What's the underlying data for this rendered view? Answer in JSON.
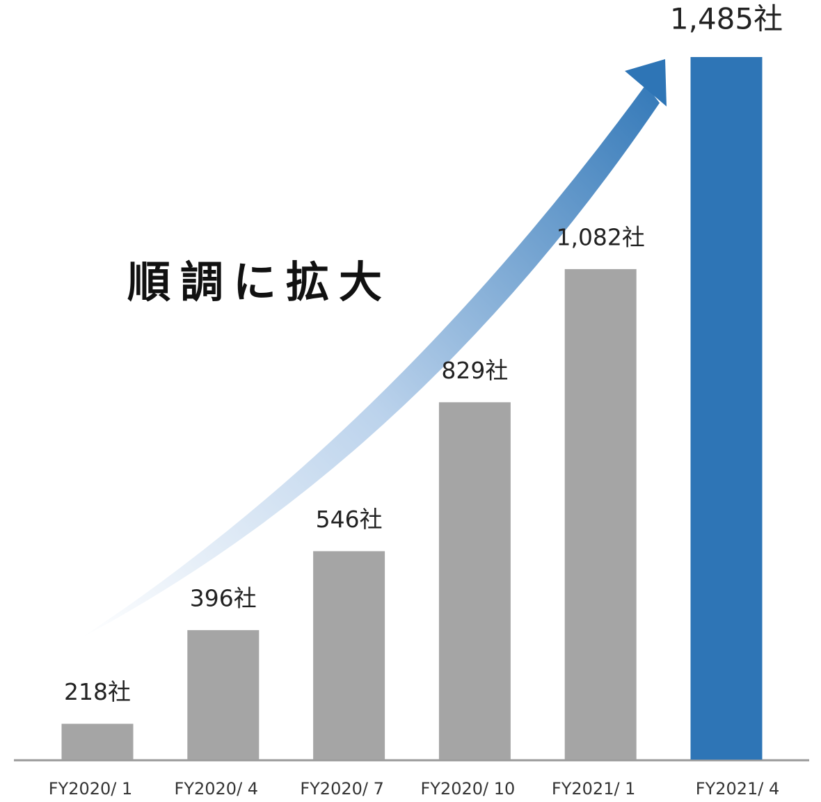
{
  "chart_data": {
    "type": "bar",
    "annotation": "順調に拡大",
    "categories": [
      "FY2020/ 1",
      "FY2020/ 4",
      "FY2020/ 7",
      "FY2020/ 10",
      "FY2021/ 1",
      "FY2021/ 4"
    ],
    "values": [
      218,
      396,
      546,
      829,
      1082,
      1485
    ],
    "value_labels": [
      "218社",
      "396社",
      "546社",
      "829社",
      "1,082社",
      "1,485社"
    ],
    "colors": [
      "#a5a5a5",
      "#a5a5a5",
      "#a5a5a5",
      "#a5a5a5",
      "#a5a5a5",
      "#2e75b6"
    ],
    "ylim": [
      150,
      1485
    ],
    "grid": false
  }
}
